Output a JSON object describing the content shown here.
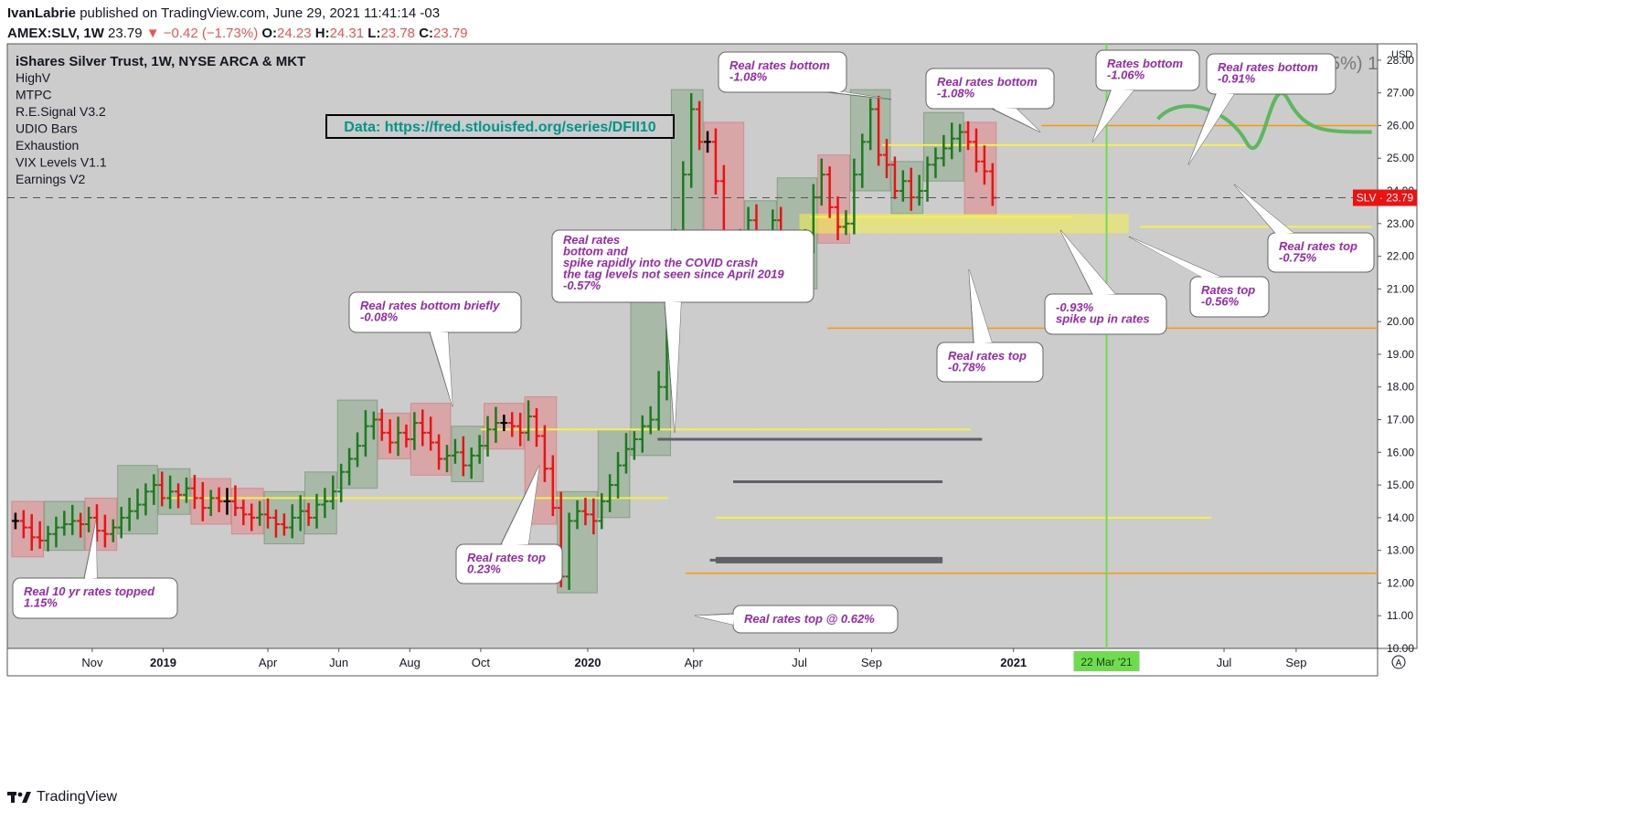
{
  "header": {
    "author": "IvanLabrie",
    "published": "published on TradingView.com, June 29, 2021 11:41:14 -03",
    "symbol": "AMEX:SLV, 1W",
    "last": "23.79",
    "change": "−0.42 (−1.73%)",
    "open_label": "O:",
    "open": "24.23",
    "high_label": "H:",
    "high": "24.31",
    "low_label": "L:",
    "low": "23.78",
    "close_label": "C:",
    "close": "23.79"
  },
  "legend": {
    "title": "iShares Silver Trust, 1W, NYSE ARCA & MKT",
    "indicators": [
      "HighV",
      "MTPC",
      "R.E.Signal V3.2",
      "UDIO Bars",
      "Exhaustion",
      "VIX Levels V1.1",
      "Earnings V2"
    ]
  },
  "data_source": "Data: https://fred.stlouisfed.org/series/DFII10",
  "price_tag": "SLV · 23.79",
  "currency": "USD",
  "date_highlight": "22 Mar '21",
  "truncated_top_text": "5%)  1",
  "footer": {
    "brand": "TradingView"
  },
  "colors": {
    "background": "#cccccc",
    "up": "#1b7a1b",
    "down": "#ee1111",
    "neutral": "#000000",
    "annotation": "#9c27b0",
    "yellow": "#f5f04a",
    "orange": "#ff9800",
    "green_line": "#6fdc4e"
  },
  "chart_data": {
    "type": "ohlc",
    "title": "iShares Silver Trust, 1W, NYSE ARCA & MKT",
    "ylabel": "USD",
    "ylim": [
      10,
      28.5
    ],
    "y_ticks": [
      "28.00",
      "27.00",
      "26.00",
      "25.00",
      "24.00",
      "23.00",
      "22.00",
      "21.00",
      "20.00",
      "19.00",
      "18.00",
      "17.00",
      "16.00",
      "15.00",
      "14.00",
      "13.00",
      "12.00",
      "11.00",
      "10.00"
    ],
    "x_ticks": [
      {
        "date": "2018-11-01",
        "label": "Nov"
      },
      {
        "date": "2019-01-01",
        "label": "2019"
      },
      {
        "date": "2019-04-01",
        "label": "Apr"
      },
      {
        "date": "2019-06-01",
        "label": "Jun"
      },
      {
        "date": "2019-08-01",
        "label": "Aug"
      },
      {
        "date": "2019-10-01",
        "label": "Oct"
      },
      {
        "date": "2020-01-01",
        "label": "2020"
      },
      {
        "date": "2020-04-01",
        "label": "Apr"
      },
      {
        "date": "2020-07-01",
        "label": "Jul"
      },
      {
        "date": "2020-09-01",
        "label": "Sep"
      },
      {
        "date": "2021-01-01",
        "label": "2021"
      },
      {
        "date": "2021-07-01",
        "label": "Jul"
      },
      {
        "date": "2021-09-01",
        "label": "Sep"
      }
    ],
    "x_range": [
      "2018-08-20",
      "2021-11-10"
    ],
    "closes": [
      13.9,
      13.7,
      13.4,
      13.3,
      13.5,
      13.7,
      13.8,
      13.9,
      13.8,
      14.0,
      13.6,
      13.5,
      13.7,
      14.0,
      14.2,
      14.4,
      14.8,
      15.0,
      14.6,
      14.8,
      14.7,
      14.9,
      14.6,
      14.3,
      14.6,
      14.5,
      14.5,
      14.3,
      14.1,
      14.0,
      14.1,
      14.0,
      13.8,
      13.7,
      14.0,
      14.2,
      14.0,
      14.4,
      14.5,
      14.8,
      15.4,
      15.8,
      16.2,
      16.8,
      17.0,
      16.6,
      16.3,
      16.6,
      16.4,
      16.9,
      16.6,
      16.3,
      15.8,
      15.9,
      16.0,
      15.6,
      15.9,
      16.2,
      16.7,
      16.9,
      16.9,
      16.8,
      16.6,
      17.1,
      16.5,
      15.5,
      14.3,
      12.2,
      13.9,
      14.2,
      14.1,
      13.9,
      14.5,
      15.0,
      15.6,
      16.1,
      16.4,
      16.8,
      17.0,
      18.0,
      20.0,
      22.5,
      24.5,
      26.5,
      25.5,
      25.5,
      24.3,
      22.4,
      21.5,
      22.5,
      23.1,
      22.5,
      21.7,
      23.1,
      22.2,
      22.1,
      21.5,
      22.5,
      23.8,
      24.5,
      23.5,
      22.9,
      23.0,
      24.5,
      25.5,
      26.5,
      25.1,
      24.8,
      24.0,
      24.3,
      23.8,
      24.0,
      24.8,
      25.0,
      25.3,
      25.6,
      25.8,
      25.5,
      24.9,
      24.6,
      23.79
    ],
    "levels": [
      {
        "price": 25.4,
        "from": "2020-09-10",
        "to": "2021-07-20",
        "color": "yellow"
      },
      {
        "price": 23.2,
        "from": "2020-07-10",
        "to": "2021-02-20",
        "color": "yellow"
      },
      {
        "price": 22.9,
        "from": "2021-04-20",
        "to": "2021-11-05",
        "color": "yellow"
      },
      {
        "price": 16.7,
        "from": "2019-10-01",
        "to": "2020-11-25",
        "color": "yellow"
      },
      {
        "price": 14.0,
        "from": "2020-04-20",
        "to": "2021-06-20",
        "color": "yellow"
      },
      {
        "price": 14.6,
        "from": "2019-01-01",
        "to": "2020-03-10",
        "color": "yellow"
      },
      {
        "price": 19.8,
        "from": "2020-07-25",
        "to": "2021-11-10",
        "color": "orange"
      },
      {
        "price": 12.3,
        "from": "2020-03-25",
        "to": "2021-11-10",
        "color": "orange"
      },
      {
        "price": 26.0,
        "from": "2021-01-25",
        "to": "2021-11-10",
        "color": "orange"
      },
      {
        "price": 12.7,
        "from": "2020-04-15",
        "to": "2020-11-01",
        "color": "grey"
      },
      {
        "price": 16.4,
        "from": "2020-03-01",
        "to": "2020-12-05",
        "color": "grey"
      },
      {
        "price": 15.1,
        "from": "2020-05-05",
        "to": "2020-11-01",
        "color": "grey"
      }
    ]
  },
  "annotations": [
    {
      "text": "Real 10 yr rates topped\n1.15%",
      "date": "2018-10-28",
      "price": 13.85
    },
    {
      "text": "Real rates bottom briefly\n-0.08%",
      "date": "2019-08-15",
      "price": 17.2
    },
    {
      "text": "Real rates top\n0.23%",
      "date": "2019-11-10",
      "price": 15.6
    },
    {
      "text": "Real rates\nbottom and\nspike rapidly into the COVID crash\nthe tag levels not seen since April 2019\n-0.57%",
      "date": "2020-03-05",
      "price": 16.5
    },
    {
      "text": "Real rates top @ 0.62%",
      "date": "2020-03-18",
      "price": 11.0
    },
    {
      "text": "Real rates bottom\n-1.08%",
      "date": "2020-08-05",
      "price": 26.5
    },
    {
      "text": "Real rates bottom\n-1.08%",
      "date": "2021-01-01",
      "price": 25.8
    },
    {
      "text": "Real rates top\n-0.78%",
      "date": "2020-11-20",
      "price": 21.5
    },
    {
      "text": "Rates bottom\n-1.06%",
      "date": "2021-02-20",
      "price": 26.8
    },
    {
      "text": "-0.93%\nspike up in rates",
      "date": "2021-03-01",
      "price": 22.7
    },
    {
      "text": "Real rates bottom\n-0.91%",
      "date": "2021-05-25",
      "price": 26.5
    },
    {
      "text": "Rates top\n-0.56%",
      "date": "2021-03-30",
      "price": 22.6
    },
    {
      "text": "Real rates top\n-0.75%",
      "date": "2021-06-20",
      "price": 24.2
    }
  ]
}
